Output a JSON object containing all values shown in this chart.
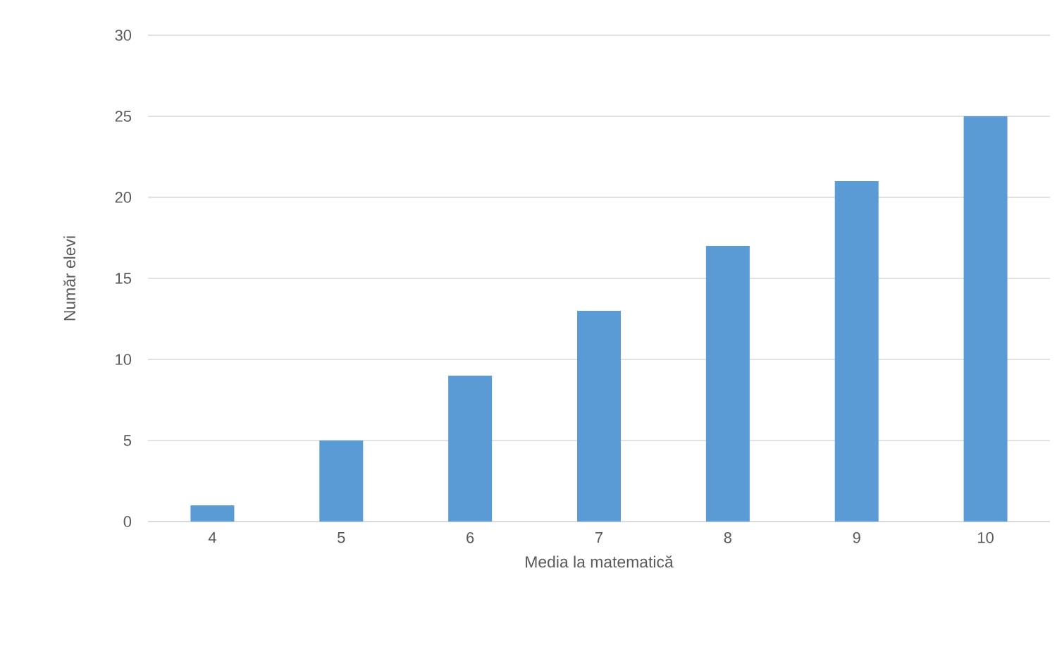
{
  "chart_data": {
    "type": "bar",
    "xlabel": "Media la matematică",
    "ylabel": "Număr elevi",
    "categories": [
      "4",
      "5",
      "6",
      "7",
      "8",
      "9",
      "10"
    ],
    "values": [
      1,
      5,
      9,
      13,
      17,
      21,
      25
    ],
    "color": "#5b9bd5",
    "ylim": [
      0,
      30
    ],
    "yticks": [
      0,
      5,
      10,
      15,
      20,
      25,
      30
    ],
    "grid": "y"
  }
}
